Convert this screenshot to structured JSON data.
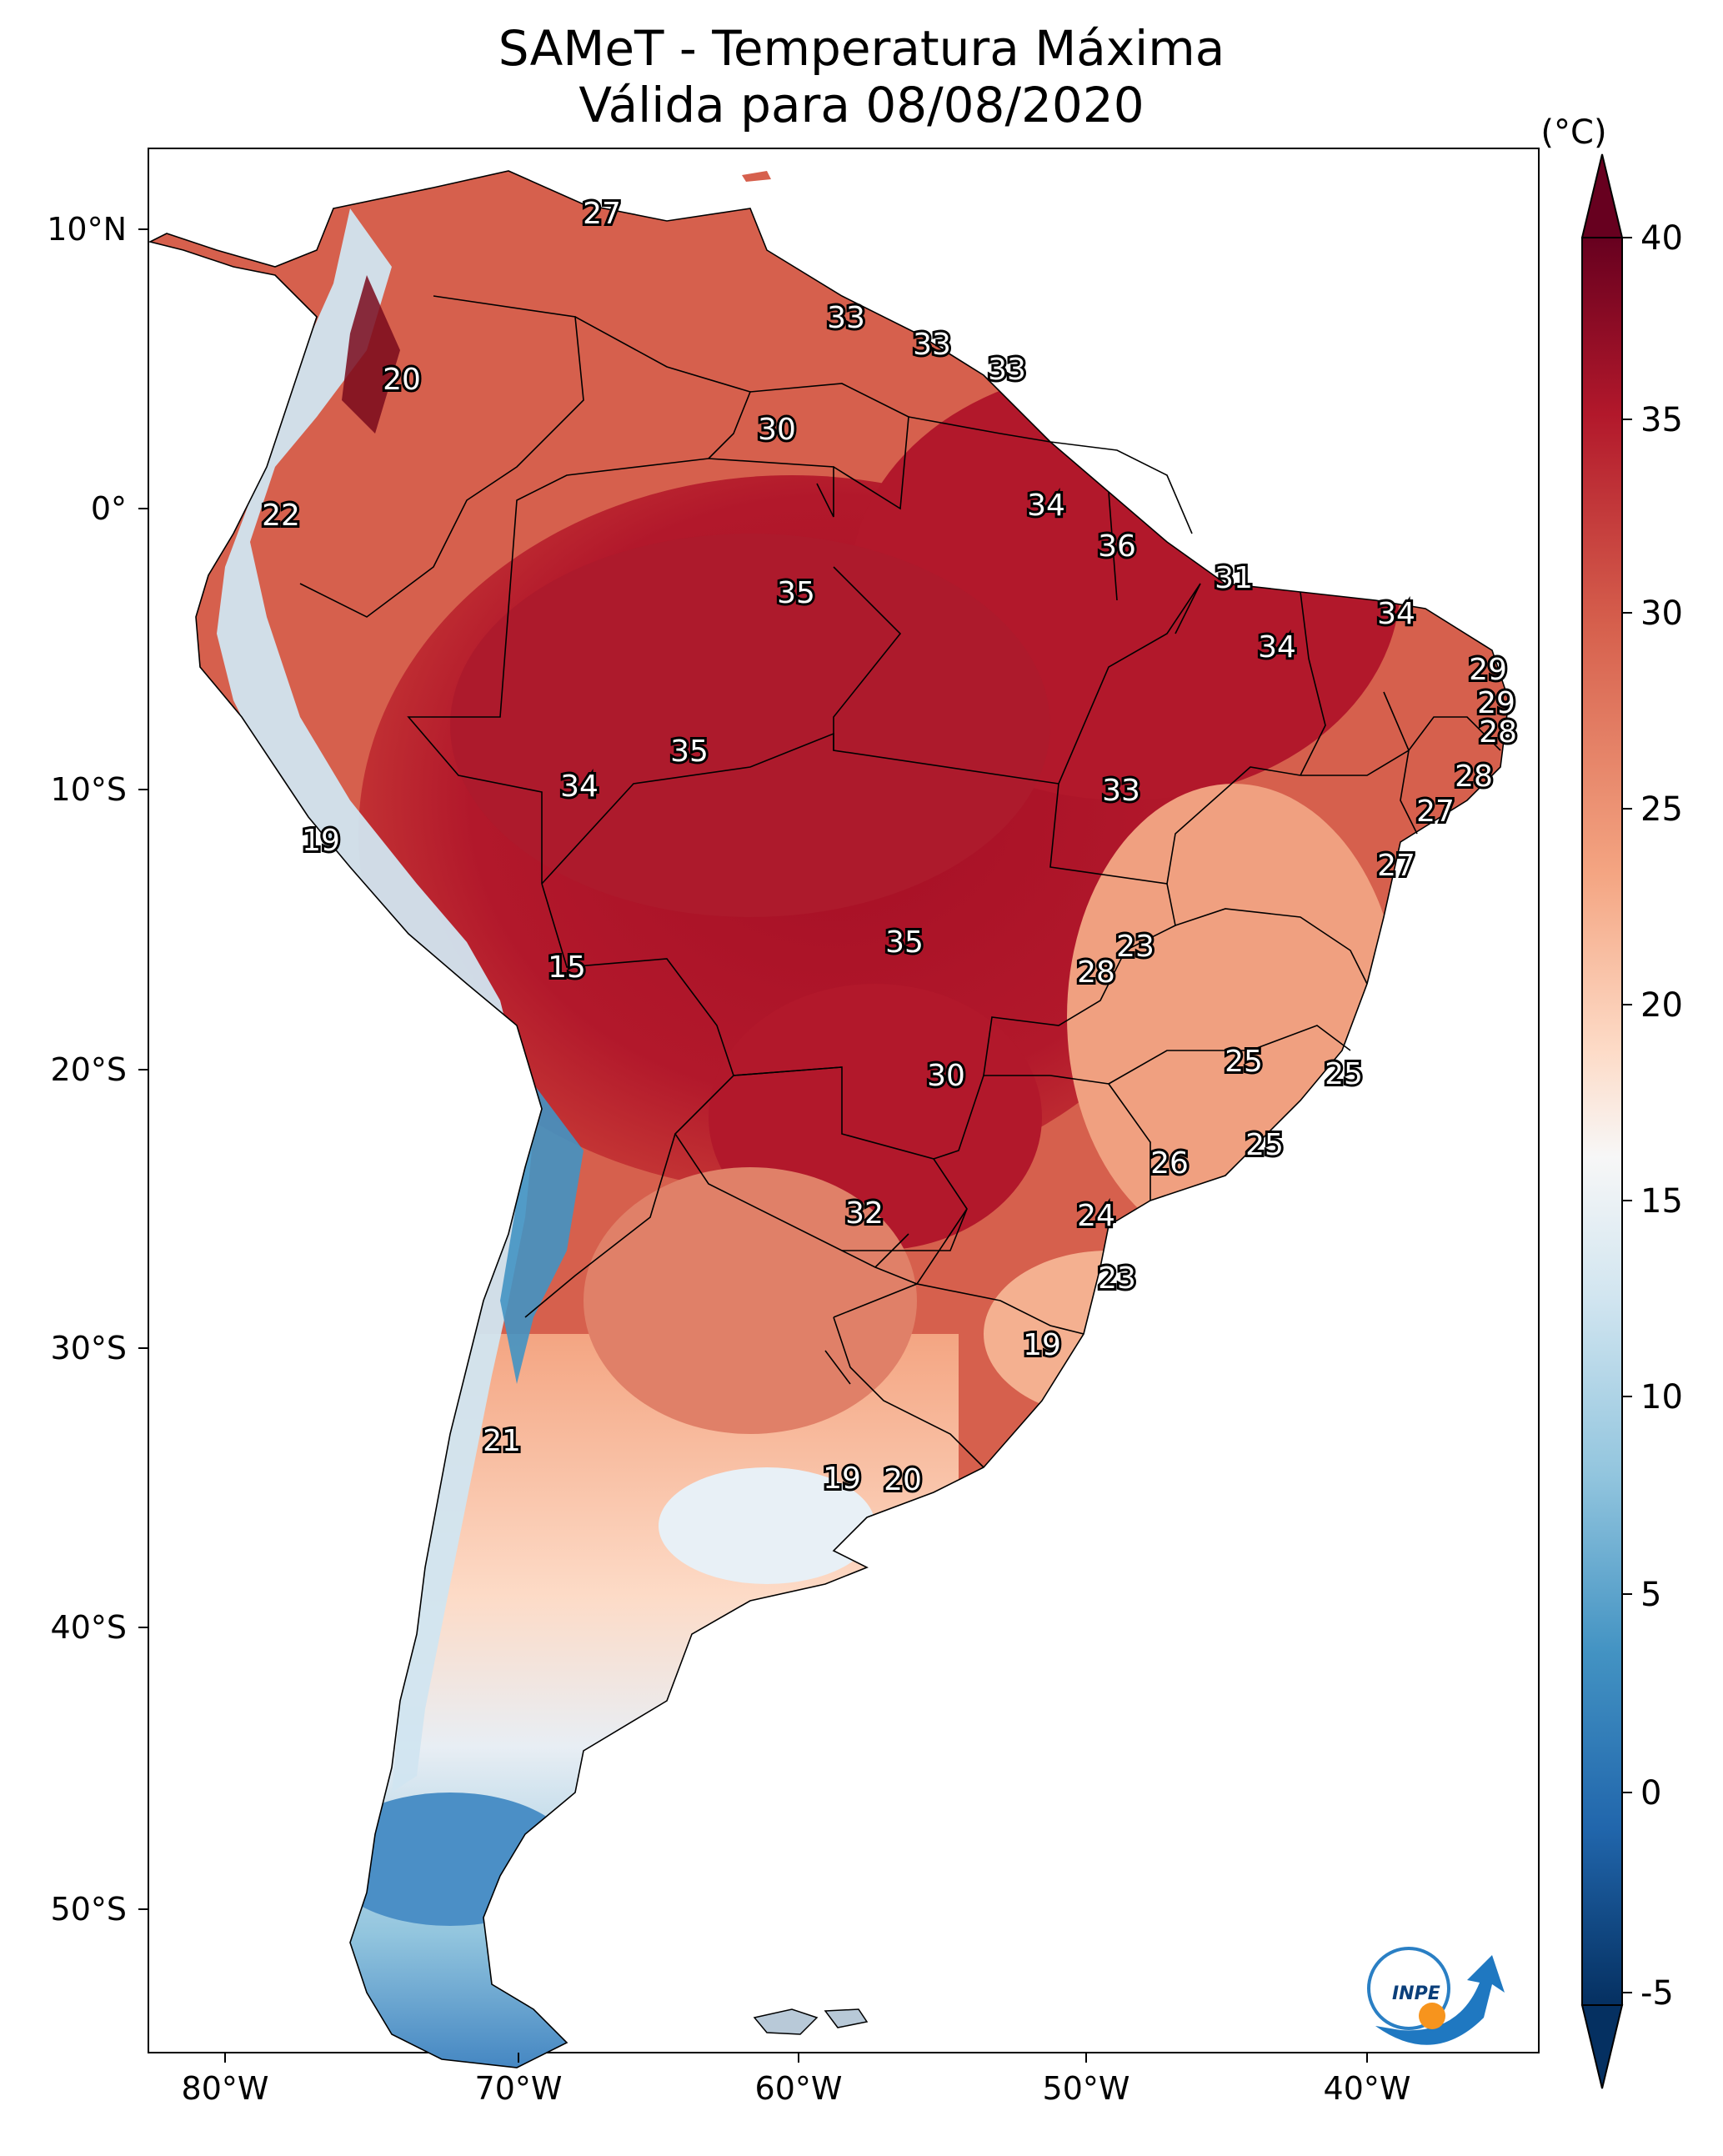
{
  "title": {
    "line1": "SAMeT - Temperatura Máxima",
    "line2": "Válida para 08/08/2020"
  },
  "map": {
    "lon_labels": [
      "80°W",
      "70°W",
      "60°W",
      "50°W",
      "40°W"
    ],
    "lat_labels": [
      "10°N",
      "0°",
      "10°S",
      "20°S",
      "30°S",
      "40°S",
      "50°S"
    ],
    "station_values": [
      {
        "id": "s1",
        "text": "27"
      },
      {
        "id": "s2",
        "text": "33"
      },
      {
        "id": "s3",
        "text": "33"
      },
      {
        "id": "s4",
        "text": "33"
      },
      {
        "id": "s5",
        "text": "20"
      },
      {
        "id": "s6",
        "text": "30"
      },
      {
        "id": "s7",
        "text": "22"
      },
      {
        "id": "s8",
        "text": "34"
      },
      {
        "id": "s9",
        "text": "36"
      },
      {
        "id": "s10",
        "text": "31"
      },
      {
        "id": "s11",
        "text": "35"
      },
      {
        "id": "s12",
        "text": "34"
      },
      {
        "id": "s13",
        "text": "34"
      },
      {
        "id": "s14",
        "text": "29"
      },
      {
        "id": "s15",
        "text": "29"
      },
      {
        "id": "s16",
        "text": "28"
      },
      {
        "id": "s17",
        "text": "35"
      },
      {
        "id": "s18",
        "text": "34"
      },
      {
        "id": "s19",
        "text": "33"
      },
      {
        "id": "s20",
        "text": "28"
      },
      {
        "id": "s21",
        "text": "27"
      },
      {
        "id": "s22",
        "text": "19"
      },
      {
        "id": "s23",
        "text": "27"
      },
      {
        "id": "s24",
        "text": "35"
      },
      {
        "id": "s25",
        "text": "23"
      },
      {
        "id": "s26",
        "text": "15"
      },
      {
        "id": "s27",
        "text": "28"
      },
      {
        "id": "s28",
        "text": "30"
      },
      {
        "id": "s29",
        "text": "25"
      },
      {
        "id": "s30",
        "text": "25"
      },
      {
        "id": "s31",
        "text": "26"
      },
      {
        "id": "s32",
        "text": "25"
      },
      {
        "id": "s33",
        "text": "32"
      },
      {
        "id": "s34",
        "text": "24"
      },
      {
        "id": "s35",
        "text": "23"
      },
      {
        "id": "s36",
        "text": "19"
      },
      {
        "id": "s37",
        "text": "21"
      },
      {
        "id": "s38",
        "text": "19"
      },
      {
        "id": "s39",
        "text": "20"
      }
    ],
    "logo_text": "INPE"
  },
  "colorbar": {
    "unit": "(°C)",
    "ticks": [
      "40",
      "35",
      "30",
      "25",
      "20",
      "15",
      "10",
      "5",
      "0",
      "-5"
    ],
    "colors": {
      "max": "#67001f",
      "hot": "#b2182b",
      "warm": "#d6604d",
      "mild": "#f4a582",
      "light": "#fddbc7",
      "neutral": "#f7f7f7",
      "cool": "#d1e5f0",
      "cold": "#92c5de",
      "colder": "#4393c3",
      "coldest": "#2166ac",
      "min": "#053061"
    }
  }
}
